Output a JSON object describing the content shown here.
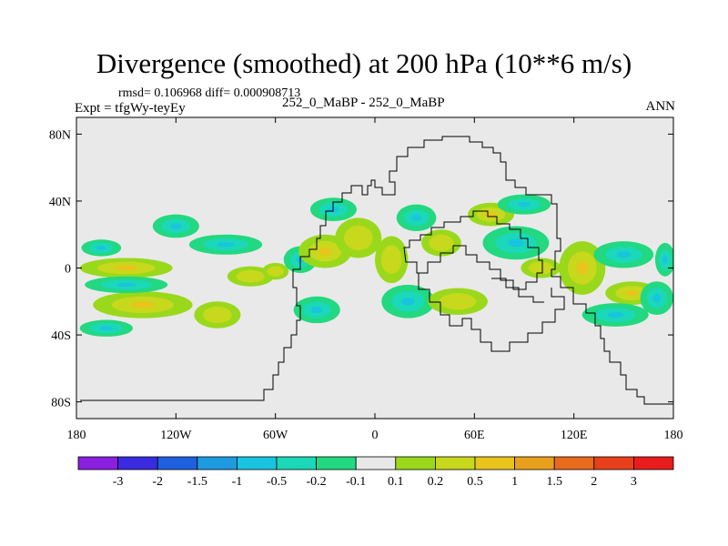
{
  "chart_data": {
    "type": "heatmap",
    "title": "Divergence (smoothed) at 200 hPa (10**6 m/s)",
    "stats_line": "rmsd= 0.106968 diff= 0.000908713",
    "expt_line": "Expt = tfgWy-teyEy",
    "case_line": "252_0_MaBP - 252_0_MaBP",
    "season": "ANN",
    "x_axis": {
      "range": [
        -180,
        180
      ],
      "ticks": [
        {
          "value": -180,
          "label": "180"
        },
        {
          "value": -120,
          "label": "120W"
        },
        {
          "value": -60,
          "label": "60W"
        },
        {
          "value": 0,
          "label": "0"
        },
        {
          "value": 60,
          "label": "60E"
        },
        {
          "value": 120,
          "label": "120E"
        },
        {
          "value": 180,
          "label": "180"
        }
      ]
    },
    "y_axis": {
      "range": [
        -90,
        90
      ],
      "ticks": [
        {
          "value": 80,
          "label": "80N"
        },
        {
          "value": 40,
          "label": "40N"
        },
        {
          "value": 0,
          "label": "0"
        },
        {
          "value": -40,
          "label": "40S"
        },
        {
          "value": -80,
          "label": "80S"
        }
      ]
    },
    "colorbar": {
      "colors": [
        "#8a1fe0",
        "#3a2ae0",
        "#1f60e0",
        "#1d9ae0",
        "#19c4e0",
        "#1ad8b8",
        "#22d880",
        "#e8e8e8",
        "#9ad81c",
        "#c8d81c",
        "#e8c41c",
        "#e8a01c",
        "#e86a1c",
        "#e8401c",
        "#e81c1c"
      ],
      "labels": [
        "-3",
        "-2",
        "-1.5",
        "-1",
        "-0.5",
        "-0.2",
        "-0.1",
        "0.1",
        "0.2",
        "0.5",
        "1",
        "1.5",
        "2",
        "3"
      ]
    },
    "blobs": [
      {
        "lon": -165,
        "lat": 12,
        "rx": 12,
        "ry": 5,
        "level": "neg_weak"
      },
      {
        "lon": -150,
        "lat": 0,
        "rx": 28,
        "ry": 6,
        "level": "pos_mid"
      },
      {
        "lon": -140,
        "lat": -22,
        "rx": 30,
        "ry": 8,
        "level": "pos_mid"
      },
      {
        "lon": -150,
        "lat": -10,
        "rx": 25,
        "ry": 5,
        "level": "neg_weak"
      },
      {
        "lon": -162,
        "lat": -36,
        "rx": 16,
        "ry": 5,
        "level": "neg_weak"
      },
      {
        "lon": -120,
        "lat": 25,
        "rx": 14,
        "ry": 7,
        "level": "neg_weak"
      },
      {
        "lon": -90,
        "lat": 14,
        "rx": 22,
        "ry": 6,
        "level": "neg_weak"
      },
      {
        "lon": -75,
        "lat": -5,
        "rx": 14,
        "ry": 6,
        "level": "pos_weak"
      },
      {
        "lon": -95,
        "lat": -28,
        "rx": 14,
        "ry": 8,
        "level": "pos_weak"
      },
      {
        "lon": -60,
        "lat": -2,
        "rx": 8,
        "ry": 5,
        "level": "pos_weak"
      },
      {
        "lon": -45,
        "lat": 5,
        "rx": 10,
        "ry": 8,
        "level": "neg_weak"
      },
      {
        "lon": -30,
        "lat": 10,
        "rx": 16,
        "ry": 10,
        "level": "pos_mid"
      },
      {
        "lon": -25,
        "lat": 35,
        "rx": 14,
        "ry": 7,
        "level": "neg_weak"
      },
      {
        "lon": -10,
        "lat": 18,
        "rx": 14,
        "ry": 12,
        "level": "pos_weak"
      },
      {
        "lon": -35,
        "lat": -25,
        "rx": 14,
        "ry": 8,
        "level": "neg_weak"
      },
      {
        "lon": 10,
        "lat": 5,
        "rx": 10,
        "ry": 14,
        "level": "pos_weak"
      },
      {
        "lon": 25,
        "lat": 30,
        "rx": 12,
        "ry": 8,
        "level": "neg_weak"
      },
      {
        "lon": 20,
        "lat": -20,
        "rx": 16,
        "ry": 10,
        "level": "neg_weak"
      },
      {
        "lon": 40,
        "lat": 15,
        "rx": 12,
        "ry": 8,
        "level": "pos_weak"
      },
      {
        "lon": 50,
        "lat": -20,
        "rx": 18,
        "ry": 8,
        "level": "pos_weak"
      },
      {
        "lon": 70,
        "lat": 32,
        "rx": 14,
        "ry": 7,
        "level": "pos_mid"
      },
      {
        "lon": 90,
        "lat": 38,
        "rx": 16,
        "ry": 6,
        "level": "neg_weak"
      },
      {
        "lon": 85,
        "lat": 15,
        "rx": 20,
        "ry": 10,
        "level": "neg_weak"
      },
      {
        "lon": 100,
        "lat": 0,
        "rx": 12,
        "ry": 6,
        "level": "pos_weak"
      },
      {
        "lon": 125,
        "lat": 0,
        "rx": 14,
        "ry": 16,
        "level": "pos_mid"
      },
      {
        "lon": 150,
        "lat": 8,
        "rx": 18,
        "ry": 8,
        "level": "neg_weak"
      },
      {
        "lon": 155,
        "lat": -15,
        "rx": 16,
        "ry": 7,
        "level": "pos_mid"
      },
      {
        "lon": 145,
        "lat": -28,
        "rx": 20,
        "ry": 7,
        "level": "neg_weak"
      },
      {
        "lon": 170,
        "lat": -18,
        "rx": 10,
        "ry": 10,
        "level": "neg_weak"
      },
      {
        "lon": 175,
        "lat": 5,
        "rx": 6,
        "ry": 10,
        "level": "neg_weak"
      }
    ]
  }
}
